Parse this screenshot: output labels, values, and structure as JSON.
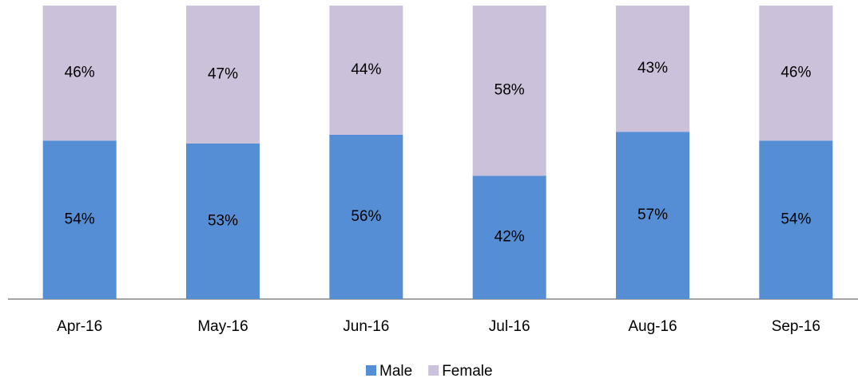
{
  "chart_data": {
    "type": "stacked_bar",
    "categories": [
      "Apr-16",
      "May-16",
      "Jun-16",
      "Jul-16",
      "Aug-16",
      "Sep-16"
    ],
    "series": [
      {
        "name": "Male",
        "color": "#558ed5",
        "values": [
          54,
          53,
          56,
          42,
          57,
          54
        ],
        "value_labels": [
          "54%",
          "53%",
          "56%",
          "42%",
          "57%",
          "54%"
        ]
      },
      {
        "name": "Female",
        "color": "#ccc1da",
        "values": [
          46,
          47,
          44,
          58,
          43,
          46
        ],
        "value_labels": [
          "46%",
          "47%",
          "44%",
          "58%",
          "43%",
          "46%"
        ]
      }
    ],
    "ylim": [
      0,
      100
    ],
    "legend": "bottom"
  }
}
